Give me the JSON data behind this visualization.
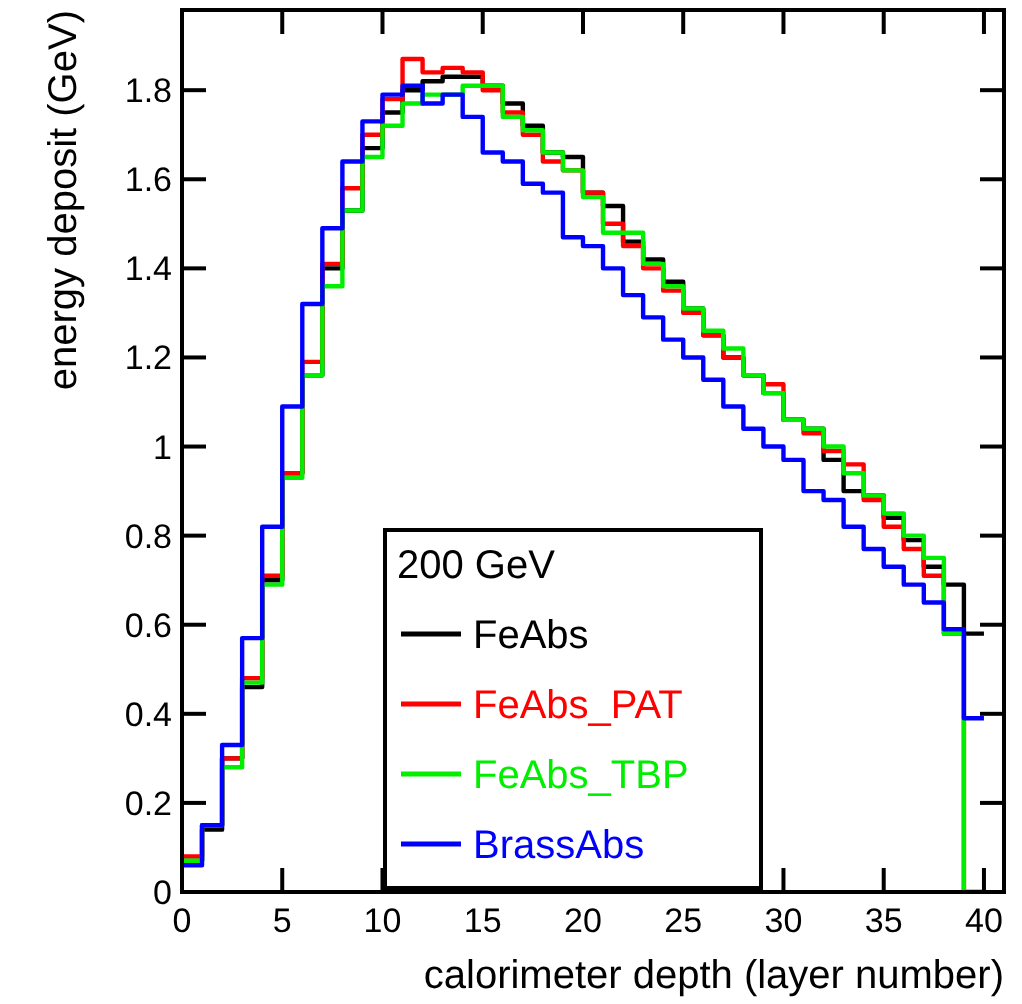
{
  "chart_data": {
    "type": "histogram",
    "xlabel": "calorimeter depth (layer number)",
    "ylabel": "energy deposit (GeV)",
    "legend_title": "200 GeV",
    "legend": "bottom",
    "grid": false,
    "bins": [
      0,
      1,
      2,
      3,
      4,
      5,
      6,
      7,
      8,
      9,
      10,
      11,
      12,
      13,
      14,
      15,
      16,
      17,
      18,
      19,
      20,
      21,
      22,
      23,
      24,
      25,
      26,
      27,
      28,
      29,
      30,
      31,
      32,
      33,
      34,
      35,
      36,
      37,
      38,
      39,
      40
    ],
    "xlim": [
      0,
      41
    ],
    "xticks": [
      0,
      5,
      10,
      15,
      20,
      25,
      30,
      35,
      40
    ],
    "ylim": [
      0,
      1.98
    ],
    "yticks": [
      0,
      0.2,
      0.4,
      0.6,
      0.8,
      1,
      1.2,
      1.4,
      1.6,
      1.8
    ],
    "series": [
      {
        "name": "FeAbs",
        "color": "#000000",
        "values": [
          0.07,
          0.14,
          0.3,
          0.46,
          0.7,
          0.94,
          1.16,
          1.4,
          1.53,
          1.67,
          1.75,
          1.8,
          1.82,
          1.83,
          1.83,
          1.81,
          1.77,
          1.72,
          1.66,
          1.65,
          1.57,
          1.54,
          1.46,
          1.42,
          1.37,
          1.31,
          1.25,
          1.2,
          1.16,
          1.12,
          1.06,
          1.04,
          0.97,
          0.9,
          0.89,
          0.84,
          0.79,
          0.73,
          0.69,
          0.58
        ]
      },
      {
        "name": "FeAbs_PAT",
        "color": "#ff0000",
        "values": [
          0.08,
          0.15,
          0.3,
          0.48,
          0.71,
          0.94,
          1.19,
          1.41,
          1.58,
          1.7,
          1.78,
          1.87,
          1.84,
          1.85,
          1.84,
          1.8,
          1.75,
          1.7,
          1.64,
          1.62,
          1.57,
          1.5,
          1.45,
          1.4,
          1.35,
          1.3,
          1.25,
          1.2,
          1.16,
          1.14,
          1.06,
          1.03,
          0.99,
          0.96,
          0.88,
          0.82,
          0.77,
          0.71,
          0.58,
          0
        ]
      },
      {
        "name": "FeAbs_TBP",
        "color": "#00ee00",
        "values": [
          0.07,
          0.15,
          0.28,
          0.47,
          0.69,
          0.93,
          1.16,
          1.36,
          1.53,
          1.65,
          1.72,
          1.77,
          1.79,
          1.79,
          1.81,
          1.81,
          1.74,
          1.71,
          1.66,
          1.62,
          1.56,
          1.48,
          1.48,
          1.41,
          1.36,
          1.31,
          1.26,
          1.22,
          1.16,
          1.12,
          1.06,
          1.04,
          1.0,
          0.94,
          0.89,
          0.85,
          0.8,
          0.75,
          0.58,
          0
        ]
      },
      {
        "name": "BrassAbs",
        "color": "#0000ff",
        "values": [
          0.06,
          0.15,
          0.33,
          0.57,
          0.82,
          1.09,
          1.32,
          1.49,
          1.64,
          1.73,
          1.79,
          1.81,
          1.77,
          1.79,
          1.74,
          1.66,
          1.64,
          1.59,
          1.57,
          1.47,
          1.45,
          1.4,
          1.34,
          1.29,
          1.24,
          1.2,
          1.15,
          1.09,
          1.04,
          1.0,
          0.97,
          0.9,
          0.88,
          0.82,
          0.77,
          0.73,
          0.69,
          0.65,
          0.59,
          0.39
        ]
      }
    ]
  }
}
